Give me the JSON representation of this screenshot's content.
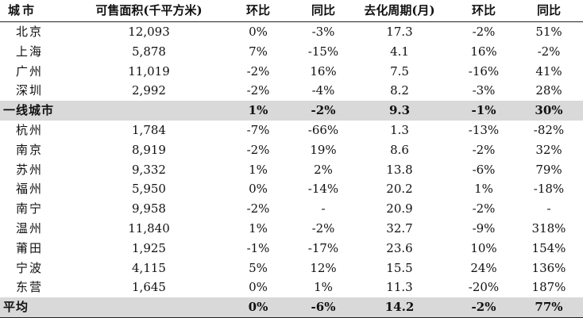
{
  "header": {
    "city": "城市",
    "stock": "可售面积(千平方米)",
    "mom1": "环比",
    "yoy1": "同比",
    "cycle": "去化周期(月)",
    "mom2": "环比",
    "yoy2": "同比"
  },
  "rows": [
    {
      "city": "北京",
      "stock": "12,093",
      "mom1": "0%",
      "yoy1": "-3%",
      "cycle": "17.3",
      "mom2": "-2%",
      "yoy2": "51%",
      "kind": "normal"
    },
    {
      "city": "上海",
      "stock": "5,878",
      "mom1": "7%",
      "yoy1": "-15%",
      "cycle": "4.1",
      "mom2": "16%",
      "yoy2": "-2%",
      "kind": "normal"
    },
    {
      "city": "广州",
      "stock": "11,019",
      "mom1": "-2%",
      "yoy1": "16%",
      "cycle": "7.5",
      "mom2": "-16%",
      "yoy2": "41%",
      "kind": "normal"
    },
    {
      "city": "深圳",
      "stock": "2,992",
      "mom1": "-2%",
      "yoy1": "-4%",
      "cycle": "8.2",
      "mom2": "-3%",
      "yoy2": "28%",
      "kind": "normal"
    },
    {
      "city": "一线城市",
      "stock": "",
      "mom1": "1%",
      "yoy1": "-2%",
      "cycle": "9.3",
      "mom2": "-1%",
      "yoy2": "30%",
      "kind": "summary"
    },
    {
      "city": "杭州",
      "stock": "1,784",
      "mom1": "-7%",
      "yoy1": "-66%",
      "cycle": "1.3",
      "mom2": "-13%",
      "yoy2": "-82%",
      "kind": "normal"
    },
    {
      "city": "南京",
      "stock": "8,919",
      "mom1": "-2%",
      "yoy1": "19%",
      "cycle": "8.6",
      "mom2": "-2%",
      "yoy2": "32%",
      "kind": "normal"
    },
    {
      "city": "苏州",
      "stock": "9,332",
      "mom1": "1%",
      "yoy1": "2%",
      "cycle": "13.8",
      "mom2": "-6%",
      "yoy2": "79%",
      "kind": "normal"
    },
    {
      "city": "福州",
      "stock": "5,950",
      "mom1": "0%",
      "yoy1": "-14%",
      "cycle": "20.2",
      "mom2": "1%",
      "yoy2": "-18%",
      "kind": "normal"
    },
    {
      "city": "南宁",
      "stock": "9,958",
      "mom1": "-2%",
      "yoy1": "-",
      "cycle": "20.9",
      "mom2": "-2%",
      "yoy2": "-",
      "kind": "normal"
    },
    {
      "city": "温州",
      "stock": "11,840",
      "mom1": "1%",
      "yoy1": "-2%",
      "cycle": "32.7",
      "mom2": "-9%",
      "yoy2": "318%",
      "kind": "normal"
    },
    {
      "city": "莆田",
      "stock": "1,925",
      "mom1": "-1%",
      "yoy1": "-17%",
      "cycle": "23.6",
      "mom2": "10%",
      "yoy2": "154%",
      "kind": "normal"
    },
    {
      "city": "宁波",
      "stock": "4,115",
      "mom1": "5%",
      "yoy1": "12%",
      "cycle": "15.5",
      "mom2": "24%",
      "yoy2": "136%",
      "kind": "normal"
    },
    {
      "city": "东营",
      "stock": "1,645",
      "mom1": "0%",
      "yoy1": "1%",
      "cycle": "11.3",
      "mom2": "-20%",
      "yoy2": "187%",
      "kind": "normal"
    },
    {
      "city": "平均",
      "stock": "",
      "mom1": "0%",
      "yoy1": "-6%",
      "cycle": "14.2",
      "mom2": "-2%",
      "yoy2": "77%",
      "kind": "summary"
    }
  ],
  "colors": {
    "summary_bg": "#d9d9d9",
    "text": "#111111",
    "rule": "#222222"
  }
}
